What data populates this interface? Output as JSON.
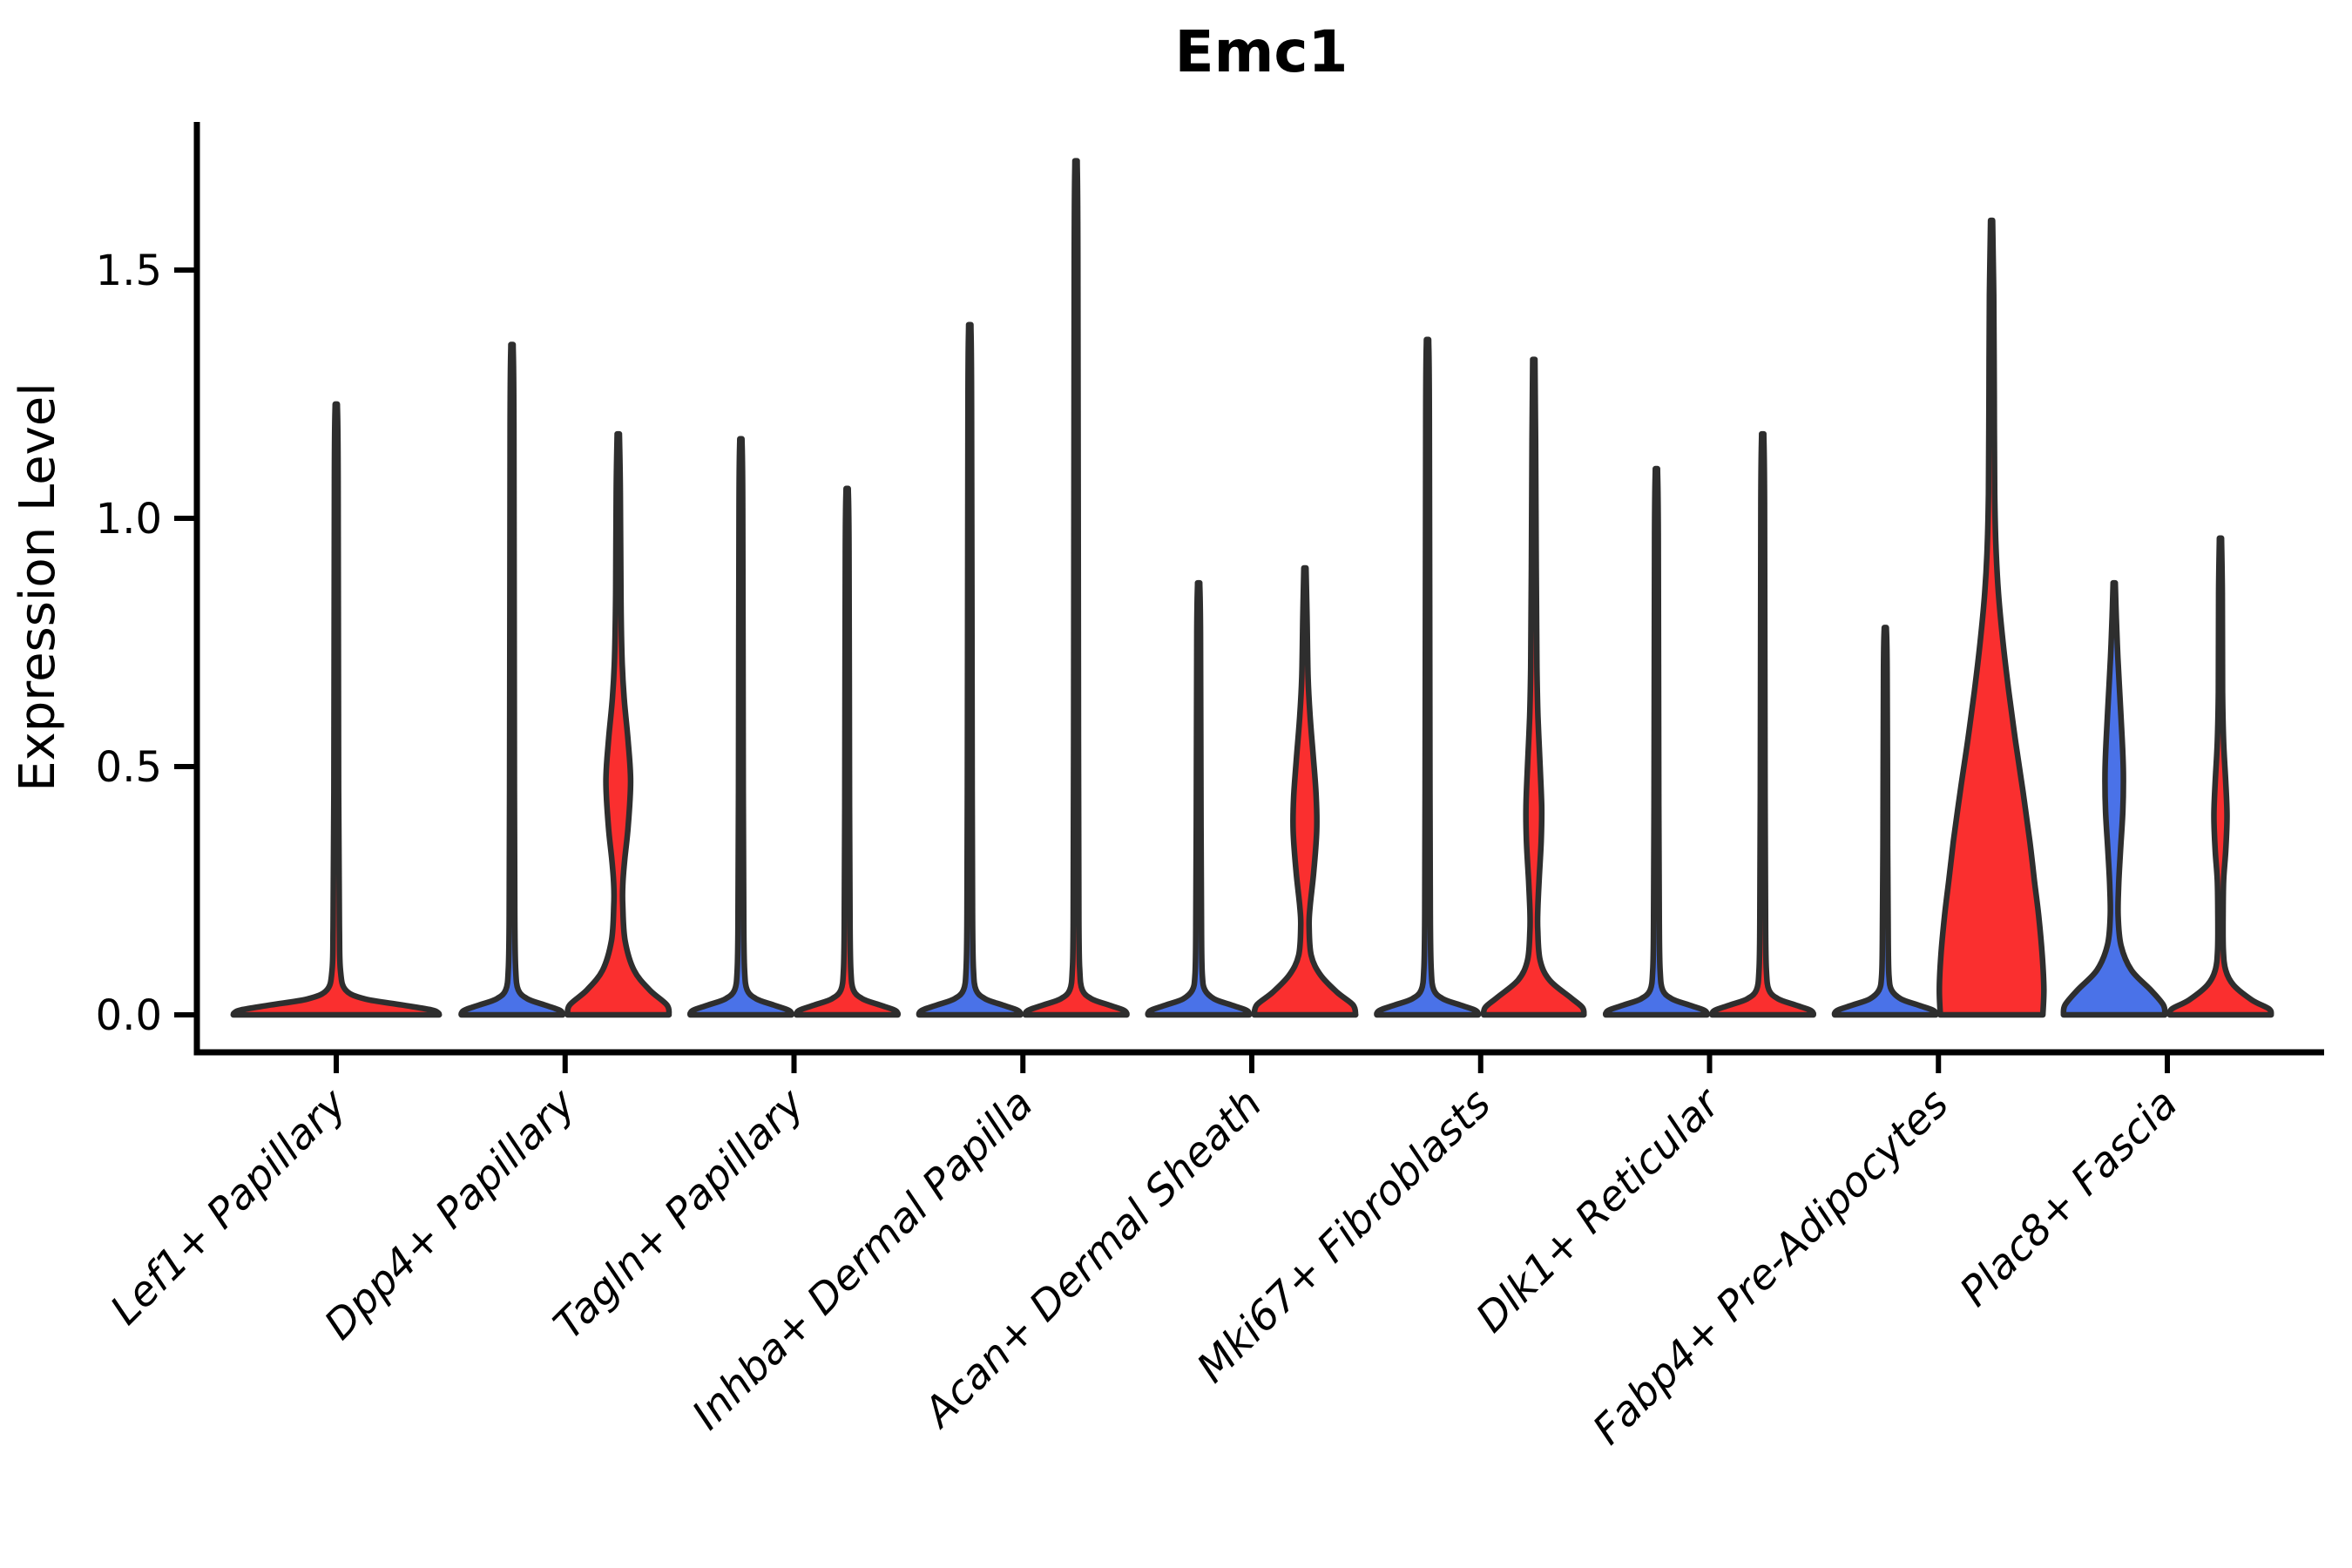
{
  "title": "Emc1",
  "axes": {
    "ylabel": "Expression Level",
    "ytick_labels": [
      "0.0",
      "0.5",
      "1.0",
      "1.5"
    ]
  },
  "chart_data": {
    "type": "violin",
    "title": "Emc1",
    "ylabel": "Expression Level",
    "xlabel": "",
    "ylim": [
      -0.075,
      1.8
    ],
    "yticks": [
      0.0,
      0.5,
      1.0,
      1.5
    ],
    "grid": false,
    "legend": "none",
    "categories": [
      "Lef1+ Papillary",
      "Dpp4+ Papillary",
      "Tagln+ Papillary",
      "Inhba+ Dermal Papilla",
      "Acan+ Dermal Sheath",
      "Mki67+ Fibroblasts",
      "Dlk1+ Reticular",
      "Fabp4+ Pre-Adipocytes",
      "Plac8+ Fascia"
    ],
    "colors": {
      "red": "#fa2f2f",
      "blue": "#4a72e8",
      "outline": "#2e2e2e"
    },
    "violins": [
      {
        "category": "Lef1+ Papillary",
        "group": 0,
        "side": 0,
        "color": "red",
        "max_expression": 1.23,
        "profile": [
          [
            1.23,
            0.02
          ],
          [
            1.08,
            0.035
          ],
          [
            0.45,
            0.045
          ],
          [
            0.18,
            0.06
          ],
          [
            0.09,
            0.08
          ],
          [
            0.05,
            0.18
          ],
          [
            0.032,
            0.55
          ],
          [
            0.02,
            1.25
          ],
          [
            0.01,
            1.82
          ],
          [
            0.004,
            1.95
          ],
          [
            0,
            1.97
          ]
        ]
      },
      {
        "category": "Dpp4+ Papillary",
        "group": 1,
        "side": -1,
        "color": "blue",
        "max_expression": 1.35,
        "profile": [
          [
            1.35,
            0.02
          ],
          [
            1.19,
            0.035
          ],
          [
            0.45,
            0.045
          ],
          [
            0.18,
            0.055
          ],
          [
            0.09,
            0.07
          ],
          [
            0.05,
            0.12
          ],
          [
            0.032,
            0.3
          ],
          [
            0.02,
            0.62
          ],
          [
            0.01,
            0.9
          ],
          [
            0.004,
            0.965
          ],
          [
            0,
            0.97
          ]
        ]
      },
      {
        "category": "Dpp4+ Papillary",
        "group": 1,
        "side": 1,
        "color": "red",
        "max_expression": 1.17,
        "profile": [
          [
            1.17,
            0.02
          ],
          [
            1.05,
            0.04
          ],
          [
            0.85,
            0.05
          ],
          [
            0.72,
            0.07
          ],
          [
            0.64,
            0.11
          ],
          [
            0.55,
            0.19
          ],
          [
            0.47,
            0.235
          ],
          [
            0.38,
            0.19
          ],
          [
            0.31,
            0.12
          ],
          [
            0.26,
            0.085
          ],
          [
            0.22,
            0.085
          ],
          [
            0.15,
            0.13
          ],
          [
            0.09,
            0.3
          ],
          [
            0.05,
            0.6
          ],
          [
            0.02,
            0.93
          ],
          [
            0,
            0.97
          ]
        ]
      },
      {
        "category": "Tagln+ Papillary",
        "group": 2,
        "side": -1,
        "color": "blue",
        "max_expression": 1.16,
        "profile": [
          [
            1.16,
            0.02
          ],
          [
            1.02,
            0.035
          ],
          [
            0.45,
            0.045
          ],
          [
            0.18,
            0.055
          ],
          [
            0.09,
            0.07
          ],
          [
            0.05,
            0.12
          ],
          [
            0.032,
            0.3
          ],
          [
            0.02,
            0.62
          ],
          [
            0.01,
            0.9
          ],
          [
            0.004,
            0.965
          ],
          [
            0,
            0.97
          ]
        ]
      },
      {
        "category": "Tagln+ Papillary",
        "group": 2,
        "side": 1,
        "color": "red",
        "max_expression": 1.06,
        "profile": [
          [
            1.06,
            0.02
          ],
          [
            0.93,
            0.035
          ],
          [
            0.42,
            0.045
          ],
          [
            0.18,
            0.055
          ],
          [
            0.09,
            0.07
          ],
          [
            0.05,
            0.12
          ],
          [
            0.032,
            0.3
          ],
          [
            0.02,
            0.62
          ],
          [
            0.01,
            0.9
          ],
          [
            0.004,
            0.965
          ],
          [
            0,
            0.97
          ]
        ]
      },
      {
        "category": "Inhba+ Dermal Papilla",
        "group": 3,
        "side": -1,
        "color": "blue",
        "max_expression": 1.39,
        "profile": [
          [
            1.39,
            0.02
          ],
          [
            1.22,
            0.035
          ],
          [
            0.45,
            0.045
          ],
          [
            0.18,
            0.055
          ],
          [
            0.09,
            0.07
          ],
          [
            0.05,
            0.12
          ],
          [
            0.032,
            0.3
          ],
          [
            0.02,
            0.62
          ],
          [
            0.01,
            0.9
          ],
          [
            0.004,
            0.965
          ],
          [
            0,
            0.97
          ]
        ]
      },
      {
        "category": "Inhba+ Dermal Papilla",
        "group": 3,
        "side": 1,
        "color": "red",
        "max_expression": 1.72,
        "profile": [
          [
            1.72,
            0.02
          ],
          [
            1.51,
            0.035
          ],
          [
            0.55,
            0.045
          ],
          [
            0.18,
            0.055
          ],
          [
            0.09,
            0.07
          ],
          [
            0.05,
            0.12
          ],
          [
            0.032,
            0.3
          ],
          [
            0.02,
            0.62
          ],
          [
            0.01,
            0.9
          ],
          [
            0.004,
            0.965
          ],
          [
            0,
            0.97
          ]
        ]
      },
      {
        "category": "Acan+ Dermal Sheath",
        "group": 4,
        "side": -1,
        "color": "blue",
        "max_expression": 0.87,
        "profile": [
          [
            0.87,
            0.02
          ],
          [
            0.77,
            0.035
          ],
          [
            0.38,
            0.045
          ],
          [
            0.16,
            0.055
          ],
          [
            0.08,
            0.07
          ],
          [
            0.05,
            0.12
          ],
          [
            0.032,
            0.3
          ],
          [
            0.02,
            0.62
          ],
          [
            0.01,
            0.9
          ],
          [
            0.004,
            0.965
          ],
          [
            0,
            0.97
          ]
        ]
      },
      {
        "category": "Acan+ Dermal Sheath",
        "group": 4,
        "side": 1,
        "color": "red",
        "max_expression": 0.9,
        "profile": [
          [
            0.9,
            0.02
          ],
          [
            0.8,
            0.04
          ],
          [
            0.68,
            0.06
          ],
          [
            0.6,
            0.1
          ],
          [
            0.52,
            0.16
          ],
          [
            0.44,
            0.215
          ],
          [
            0.37,
            0.225
          ],
          [
            0.29,
            0.17
          ],
          [
            0.22,
            0.1
          ],
          [
            0.18,
            0.08
          ],
          [
            0.12,
            0.12
          ],
          [
            0.08,
            0.3
          ],
          [
            0.045,
            0.62
          ],
          [
            0.02,
            0.92
          ],
          [
            0,
            0.97
          ]
        ]
      },
      {
        "category": "Mki67+ Fibroblasts",
        "group": 5,
        "side": -1,
        "color": "blue",
        "max_expression": 1.36,
        "profile": [
          [
            1.36,
            0.02
          ],
          [
            1.2,
            0.035
          ],
          [
            0.45,
            0.045
          ],
          [
            0.18,
            0.055
          ],
          [
            0.09,
            0.07
          ],
          [
            0.05,
            0.12
          ],
          [
            0.032,
            0.3
          ],
          [
            0.02,
            0.62
          ],
          [
            0.01,
            0.9
          ],
          [
            0.004,
            0.965
          ],
          [
            0,
            0.97
          ]
        ]
      },
      {
        "category": "Mki67+ Fibroblasts",
        "group": 5,
        "side": 1,
        "color": "red",
        "max_expression": 1.32,
        "profile": [
          [
            1.32,
            0.02
          ],
          [
            1.15,
            0.035
          ],
          [
            0.9,
            0.045
          ],
          [
            0.7,
            0.06
          ],
          [
            0.6,
            0.08
          ],
          [
            0.5,
            0.12
          ],
          [
            0.42,
            0.15
          ],
          [
            0.35,
            0.14
          ],
          [
            0.27,
            0.1
          ],
          [
            0.21,
            0.075
          ],
          [
            0.17,
            0.075
          ],
          [
            0.11,
            0.12
          ],
          [
            0.07,
            0.3
          ],
          [
            0.035,
            0.7
          ],
          [
            0.015,
            0.93
          ],
          [
            0,
            0.96
          ]
        ]
      },
      {
        "category": "Dlk1+ Reticular",
        "group": 6,
        "side": -1,
        "color": "blue",
        "max_expression": 1.1,
        "profile": [
          [
            1.1,
            0.02
          ],
          [
            0.97,
            0.035
          ],
          [
            0.42,
            0.045
          ],
          [
            0.18,
            0.055
          ],
          [
            0.09,
            0.07
          ],
          [
            0.05,
            0.12
          ],
          [
            0.032,
            0.3
          ],
          [
            0.02,
            0.62
          ],
          [
            0.01,
            0.9
          ],
          [
            0.004,
            0.965
          ],
          [
            0,
            0.97
          ]
        ]
      },
      {
        "category": "Dlk1+ Reticular",
        "group": 6,
        "side": 1,
        "color": "red",
        "max_expression": 1.17,
        "profile": [
          [
            1.17,
            0.02
          ],
          [
            1.03,
            0.035
          ],
          [
            0.44,
            0.045
          ],
          [
            0.18,
            0.055
          ],
          [
            0.09,
            0.07
          ],
          [
            0.05,
            0.12
          ],
          [
            0.032,
            0.3
          ],
          [
            0.02,
            0.62
          ],
          [
            0.01,
            0.9
          ],
          [
            0.004,
            0.965
          ],
          [
            0,
            0.97
          ]
        ]
      },
      {
        "category": "Fabp4+ Pre-Adipocytes",
        "group": 7,
        "side": -1,
        "color": "blue",
        "max_expression": 0.78,
        "profile": [
          [
            0.78,
            0.02
          ],
          [
            0.69,
            0.035
          ],
          [
            0.34,
            0.045
          ],
          [
            0.15,
            0.055
          ],
          [
            0.08,
            0.07
          ],
          [
            0.05,
            0.12
          ],
          [
            0.032,
            0.3
          ],
          [
            0.02,
            0.62
          ],
          [
            0.01,
            0.9
          ],
          [
            0.004,
            0.965
          ],
          [
            0,
            0.97
          ]
        ]
      },
      {
        "category": "Fabp4+ Pre-Adipocytes",
        "group": 7,
        "side": 1,
        "color": "red",
        "max_expression": 1.6,
        "profile": [
          [
            1.6,
            0.02
          ],
          [
            1.45,
            0.04
          ],
          [
            1.25,
            0.05
          ],
          [
            1.05,
            0.06
          ],
          [
            0.95,
            0.08
          ],
          [
            0.85,
            0.13
          ],
          [
            0.75,
            0.22
          ],
          [
            0.65,
            0.33
          ],
          [
            0.55,
            0.46
          ],
          [
            0.45,
            0.6
          ],
          [
            0.35,
            0.73
          ],
          [
            0.27,
            0.82
          ],
          [
            0.2,
            0.9
          ],
          [
            0.12,
            0.97
          ],
          [
            0.05,
            1.0
          ],
          [
            0,
            0.98
          ]
        ]
      },
      {
        "category": "Plac8+ Fascia",
        "group": 8,
        "side": -1,
        "color": "blue",
        "max_expression": 0.87,
        "profile": [
          [
            0.87,
            0.02
          ],
          [
            0.8,
            0.04
          ],
          [
            0.72,
            0.07
          ],
          [
            0.64,
            0.11
          ],
          [
            0.56,
            0.15
          ],
          [
            0.49,
            0.175
          ],
          [
            0.41,
            0.165
          ],
          [
            0.33,
            0.12
          ],
          [
            0.26,
            0.085
          ],
          [
            0.2,
            0.075
          ],
          [
            0.14,
            0.13
          ],
          [
            0.09,
            0.33
          ],
          [
            0.05,
            0.7
          ],
          [
            0.02,
            0.94
          ],
          [
            0,
            0.97
          ]
        ]
      },
      {
        "category": "Plac8+ Fascia",
        "group": 8,
        "side": 1,
        "color": "red",
        "max_expression": 0.96,
        "profile": [
          [
            0.96,
            0.02
          ],
          [
            0.85,
            0.035
          ],
          [
            0.65,
            0.04
          ],
          [
            0.55,
            0.06
          ],
          [
            0.47,
            0.1
          ],
          [
            0.4,
            0.125
          ],
          [
            0.33,
            0.1
          ],
          [
            0.27,
            0.06
          ],
          [
            0.2,
            0.05
          ],
          [
            0.13,
            0.055
          ],
          [
            0.09,
            0.1
          ],
          [
            0.06,
            0.25
          ],
          [
            0.03,
            0.6
          ],
          [
            0.012,
            0.93
          ],
          [
            0,
            0.97
          ]
        ]
      }
    ]
  }
}
